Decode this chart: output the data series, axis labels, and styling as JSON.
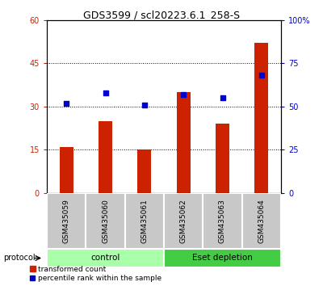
{
  "title": "GDS3599 / scl20223.6.1_258-S",
  "samples": [
    "GSM435059",
    "GSM435060",
    "GSM435061",
    "GSM435062",
    "GSM435063",
    "GSM435064"
  ],
  "bar_values": [
    16.0,
    25.0,
    15.0,
    35.0,
    24.0,
    52.0
  ],
  "dot_values": [
    52.0,
    58.0,
    51.0,
    57.0,
    55.0,
    68.0
  ],
  "bar_color": "#cc2200",
  "dot_color": "#0000cc",
  "left_ylim": [
    0,
    60
  ],
  "right_ylim": [
    0,
    100
  ],
  "left_yticks": [
    0,
    15,
    30,
    45,
    60
  ],
  "right_yticks": [
    0,
    25,
    50,
    75,
    100
  ],
  "right_yticklabels": [
    "0",
    "25",
    "50",
    "75",
    "100%"
  ],
  "grid_values": [
    15,
    30,
    45
  ],
  "groups": [
    {
      "label": "control",
      "indices": [
        0,
        1,
        2
      ],
      "color": "#aaffaa"
    },
    {
      "label": "Eset depletion",
      "indices": [
        3,
        4,
        5
      ],
      "color": "#44cc44"
    }
  ],
  "protocol_label": "protocol",
  "legend_bar_label": "transformed count",
  "legend_dot_label": "percentile rank within the sample",
  "bar_width": 0.35,
  "title_fontsize": 9,
  "axis_fontsize": 7,
  "tick_label_color_left": "#cc2200",
  "tick_label_color_right": "#0000cc",
  "sample_band_color": "#c8c8c8",
  "plot_bg": "#ffffff"
}
